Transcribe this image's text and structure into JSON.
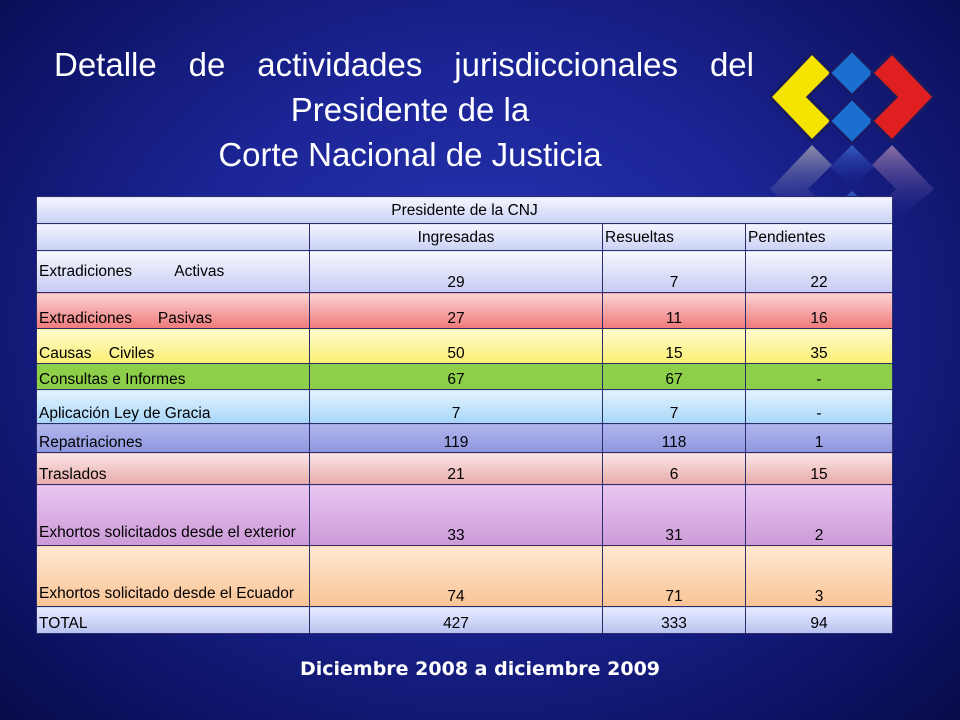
{
  "title": {
    "line1": "Detalle  de actividades jurisdiccionales del",
    "line2": "Presidente de la",
    "line3": "Corte Nacional de Justicia"
  },
  "table": {
    "caption": "Presidente de la CNJ",
    "headers": [
      "",
      "Ingresadas",
      "Resueltas",
      "Pendientes"
    ],
    "rows": [
      {
        "label": "Extradiciones          Activas",
        "ingresadas": "29",
        "resueltas": "7",
        "pendientes": "22"
      },
      {
        "label": "Extradiciones      Pasivas",
        "ingresadas": "27",
        "resueltas": "11",
        "pendientes": "16"
      },
      {
        "label": "Causas    Civiles",
        "ingresadas": "50",
        "resueltas": "15",
        "pendientes": "35"
      },
      {
        "label": "Consultas e Informes",
        "ingresadas": "67",
        "resueltas": "67",
        "pendientes": "-"
      },
      {
        "label": "Aplicación Ley de Gracia",
        "ingresadas": "7",
        "resueltas": "7",
        "pendientes": "-"
      },
      {
        "label": "Repatriaciones",
        "ingresadas": "119",
        "resueltas": "118",
        "pendientes": "1"
      },
      {
        "label": "Traslados",
        "ingresadas": "21",
        "resueltas": "6",
        "pendientes": "15"
      },
      {
        "label": "Exhortos solicitados desde el exterior",
        "ingresadas": "33",
        "resueltas": "31",
        "pendientes": "2"
      },
      {
        "label": "Exhortos solicitado desde el Ecuador",
        "ingresadas": "74",
        "resueltas": "71",
        "pendientes": "3"
      },
      {
        "label": "TOTAL",
        "ingresadas": "427",
        "resueltas": "333",
        "pendientes": "94"
      }
    ]
  },
  "footer": "Diciembre 2008 a diciembre 2009",
  "logo": {
    "icon": "diamond-tiles-logo-icon",
    "colors": {
      "yellow": "#f5e400",
      "blue": "#1a6fd0",
      "red": "#e02020",
      "gray": "#8a8a96"
    }
  }
}
